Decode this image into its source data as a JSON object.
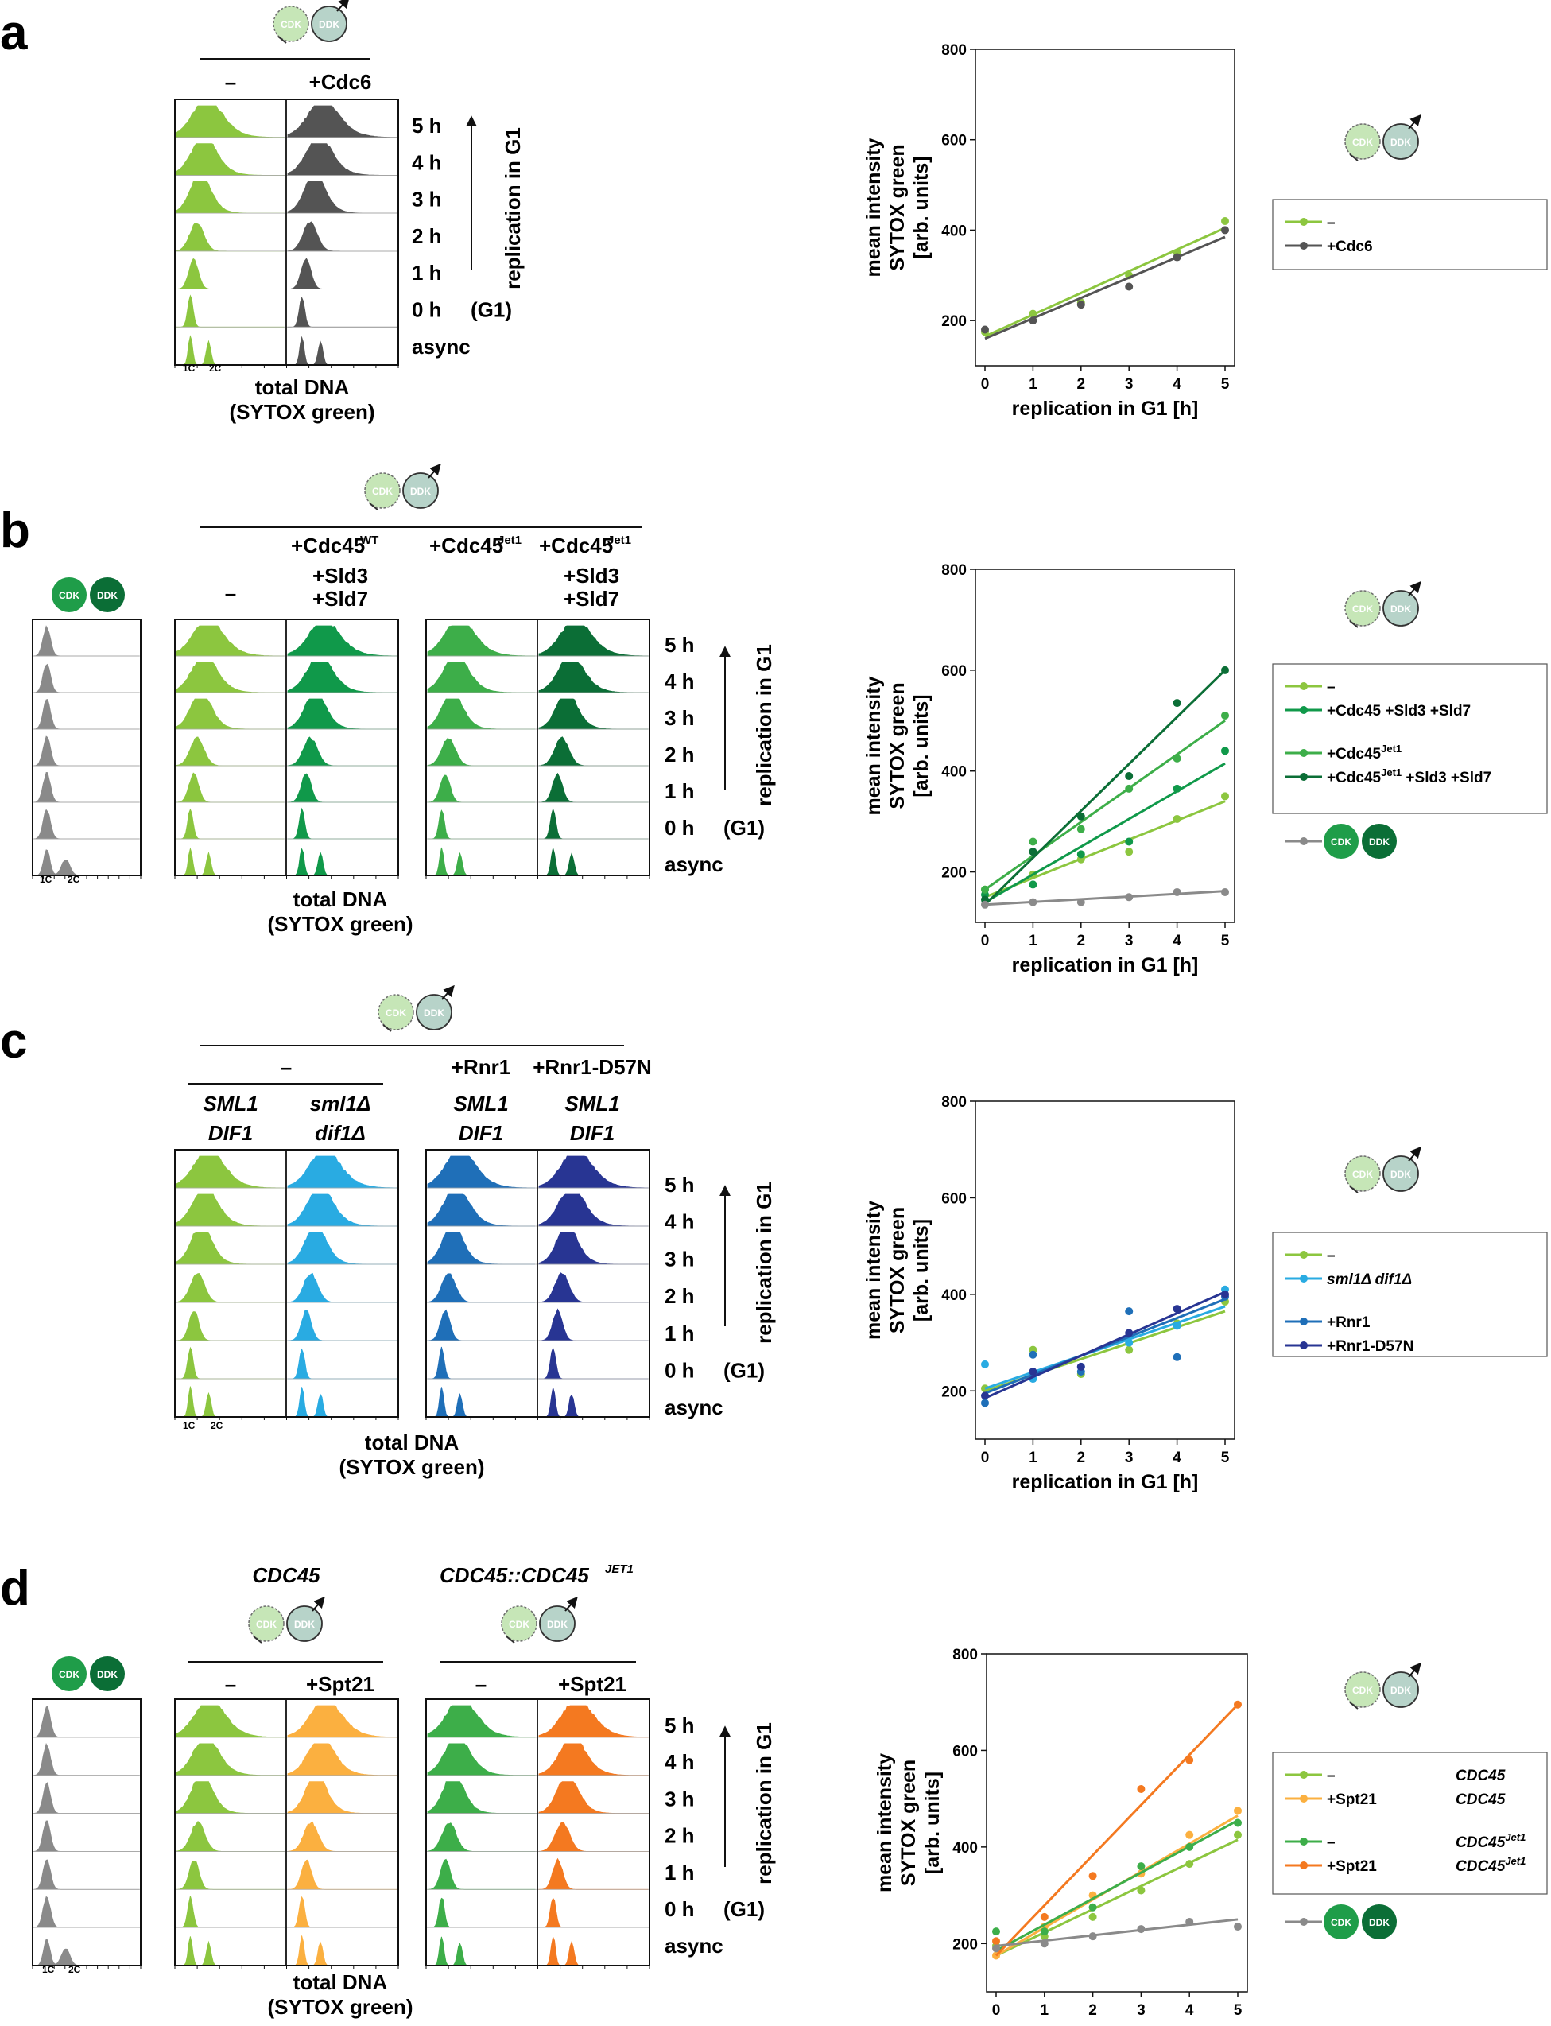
{
  "panel_labels": [
    "a",
    "b",
    "c",
    "d"
  ],
  "common": {
    "cdk_label": "CDK",
    "ddk_label": "DDK",
    "time_labels": [
      "5 h",
      "4 h",
      "3 h",
      "2 h",
      "1 h",
      "0 h",
      "async"
    ],
    "g1_tag": "(G1)",
    "arrow_label": "replication in G1",
    "xaxis_line1": "total DNA",
    "xaxis_line2": "(SYTOX green)",
    "tick_1c": "1C",
    "tick_2c": "2C",
    "dash": "–"
  },
  "panel_a": {
    "columns": [
      "–",
      "+Cdc6"
    ],
    "colors": {
      "green": "#8cc63f",
      "dark": "#545454"
    }
  },
  "panel_b": {
    "col_minus": "–",
    "col2_line1": "+Cdc45",
    "col2_sup": "WT",
    "col2_line2": "+Sld3",
    "col2_line3": "+Sld7",
    "col3_line1": "+Cdc45",
    "col3_sup": "Jet1",
    "col4_line1": "+Cdc45",
    "col4_sup": "Jet1",
    "col4_line2": "+Sld3",
    "col4_line3": "+Sld7",
    "colors": {
      "grey": "#8a8a8a",
      "green": "#8cc63f",
      "mid": "#10994a",
      "bright": "#3dae49",
      "dark": "#0b6e36"
    }
  },
  "panel_c": {
    "col_minus": "–",
    "col_rnr1": "+Rnr1",
    "col_rnr1d": "+Rnr1-D57N",
    "geno": [
      [
        "SML1",
        "DIF1"
      ],
      [
        "sml1Δ",
        "dif1Δ"
      ],
      [
        "SML1",
        "DIF1"
      ],
      [
        "SML1",
        "DIF1"
      ]
    ],
    "colors": {
      "green": "#8cc63f",
      "cyan": "#29abe2",
      "blue": "#1f6fb8",
      "navy": "#283593"
    }
  },
  "panel_d": {
    "title_left": "CDC45",
    "title_right": "CDC45::CDC45",
    "title_right_sup": "JET1",
    "columns_left": [
      "–",
      "+Spt21"
    ],
    "columns_right": [
      "–",
      "+Spt21"
    ],
    "colors": {
      "grey": "#8a8a8a",
      "green": "#8cc63f",
      "lightorange": "#fbb040",
      "bright": "#3dae49",
      "orange": "#f47920"
    }
  },
  "chart_data": [
    {
      "type": "scatter",
      "title": "",
      "xlabel": "replication in G1 [h]",
      "ylabel": [
        "mean intensity",
        "SYTOX green",
        "[arb. units]"
      ],
      "xlim": [
        0,
        5
      ],
      "ylim": [
        100,
        800
      ],
      "xticks": [
        0,
        1,
        2,
        3,
        4,
        5
      ],
      "yticks": [
        200,
        400,
        600,
        800
      ],
      "legend": [
        {
          "label": "–",
          "sup": "",
          "geno": "",
          "genosup": ""
        },
        {
          "label": "+Cdc6",
          "sup": "",
          "geno": "",
          "genosup": ""
        }
      ],
      "series": [
        {
          "name": "–",
          "color": "#8cc63f",
          "x": [
            0,
            1,
            2,
            3,
            4,
            5
          ],
          "y": [
            175,
            215,
            240,
            300,
            350,
            420
          ],
          "fit": [
            165,
            405
          ]
        },
        {
          "name": "+Cdc6",
          "color": "#545454",
          "x": [
            0,
            1,
            2,
            3,
            4,
            5
          ],
          "y": [
            180,
            200,
            235,
            275,
            340,
            400
          ],
          "fit": [
            160,
            385
          ]
        }
      ]
    },
    {
      "type": "scatter",
      "title": "",
      "xlabel": "replication in G1 [h]",
      "ylabel": [
        "mean intensity",
        "SYTOX green",
        "[arb. units]"
      ],
      "xlim": [
        0,
        5
      ],
      "ylim": [
        100,
        800
      ],
      "xticks": [
        0,
        1,
        2,
        3,
        4,
        5
      ],
      "yticks": [
        200,
        400,
        600,
        800
      ],
      "legend": [
        {
          "label": "–",
          "sup": "",
          "geno": "",
          "genosup": ""
        },
        {
          "label": "+Cdc45 +Sld3 +Sld7",
          "sup": "",
          "geno": "",
          "genosup": ""
        },
        {
          "label": "+Cdc45",
          "sup": "Jet1",
          "geno": "",
          "genosup": ""
        },
        {
          "label": "+Cdc45",
          "sup": "Jet1",
          "tail": " +Sld3 +Sld7",
          "geno": "",
          "genosup": ""
        },
        {
          "label": "",
          "sup": "",
          "geno": "",
          "genosup": "",
          "badge": true
        }
      ],
      "series": [
        {
          "name": "–",
          "color": "#8cc63f",
          "x": [
            0,
            1,
            2,
            3,
            4,
            5
          ],
          "y": [
            165,
            195,
            225,
            240,
            305,
            350
          ],
          "fit": [
            150,
            340
          ]
        },
        {
          "name": "+Cdc45 +Sld3 +Sld7",
          "color": "#10994a",
          "x": [
            0,
            1,
            2,
            3,
            4,
            5
          ],
          "y": [
            155,
            175,
            235,
            260,
            365,
            440
          ],
          "fit": [
            140,
            415
          ]
        },
        {
          "name": "+Cdc45Jet1",
          "color": "#3dae49",
          "x": [
            0,
            1,
            2,
            3,
            4,
            5
          ],
          "y": [
            165,
            260,
            285,
            365,
            425,
            510
          ],
          "fit": [
            165,
            500
          ]
        },
        {
          "name": "+Cdc45Jet1 +Sld3 +Sld7",
          "color": "#0b6e36",
          "x": [
            0,
            1,
            2,
            3,
            4,
            5
          ],
          "y": [
            145,
            240,
            310,
            390,
            535,
            600
          ],
          "fit": [
            135,
            600
          ]
        },
        {
          "name": "CDK DDK",
          "color": "#8a8a8a",
          "x": [
            0,
            1,
            2,
            3,
            4,
            5
          ],
          "y": [
            135,
            140,
            140,
            150,
            160,
            160
          ],
          "fit": [
            135,
            162
          ]
        }
      ]
    },
    {
      "type": "scatter",
      "title": "",
      "xlabel": "replication in G1 [h]",
      "ylabel": [
        "mean intensity",
        "SYTOX green",
        "[arb. units]"
      ],
      "xlim": [
        0,
        5
      ],
      "ylim": [
        100,
        800
      ],
      "xticks": [
        0,
        1,
        2,
        3,
        4,
        5
      ],
      "yticks": [
        200,
        400,
        600,
        800
      ],
      "legend": [
        {
          "label": "–",
          "sup": "",
          "geno": "",
          "genosup": ""
        },
        {
          "label": "sml1Δ  dif1Δ",
          "sup": "",
          "geno": "",
          "genosup": "",
          "italic": true
        },
        {
          "label": "+Rnr1",
          "sup": "",
          "geno": "",
          "genosup": ""
        },
        {
          "label": "+Rnr1-D57N",
          "sup": "",
          "geno": "",
          "genosup": ""
        }
      ],
      "series": [
        {
          "name": "–",
          "color": "#8cc63f",
          "x": [
            0,
            1,
            2,
            3,
            4,
            5
          ],
          "y": [
            205,
            285,
            235,
            285,
            340,
            385
          ],
          "fit": [
            200,
            365
          ]
        },
        {
          "name": "sml1Δ dif1Δ",
          "color": "#29abe2",
          "x": [
            0,
            1,
            2,
            3,
            4,
            5
          ],
          "y": [
            255,
            225,
            250,
            300,
            335,
            410
          ],
          "fit": [
            205,
            375
          ]
        },
        {
          "name": "+Rnr1",
          "color": "#1f6fb8",
          "x": [
            0,
            1,
            2,
            3,
            4,
            5
          ],
          "y": [
            175,
            275,
            240,
            365,
            270,
            395
          ],
          "fit": [
            195,
            390
          ]
        },
        {
          "name": "+Rnr1-D57N",
          "color": "#283593",
          "x": [
            0,
            1,
            2,
            3,
            4,
            5
          ],
          "y": [
            190,
            240,
            250,
            320,
            370,
            400
          ],
          "fit": [
            185,
            405
          ]
        }
      ]
    },
    {
      "type": "scatter",
      "title": "",
      "xlabel": "replication in G1 [h]",
      "ylabel": [
        "mean intensity",
        "SYTOX green",
        "[arb. units]"
      ],
      "xlim": [
        0,
        5
      ],
      "ylim": [
        100,
        800
      ],
      "xticks": [
        0,
        1,
        2,
        3,
        4,
        5
      ],
      "yticks": [
        200,
        400,
        600,
        800
      ],
      "legend": [
        {
          "label": "–",
          "sup": "",
          "geno": "CDC45",
          "genosup": ""
        },
        {
          "label": "+Spt21",
          "sup": "",
          "geno": "CDC45",
          "genosup": ""
        },
        {
          "label": "–",
          "sup": "",
          "geno": "CDC45",
          "genosup": "Jet1"
        },
        {
          "label": "+Spt21",
          "sup": "",
          "geno": "CDC45",
          "genosup": "Jet1"
        },
        {
          "label": "",
          "sup": "",
          "geno": "",
          "genosup": "",
          "badge": true
        }
      ],
      "series": [
        {
          "name": "– CDC45",
          "color": "#8cc63f",
          "x": [
            0,
            1,
            2,
            3,
            4,
            5
          ],
          "y": [
            195,
            215,
            255,
            310,
            365,
            425
          ],
          "fit": [
            175,
            415
          ]
        },
        {
          "name": "+Spt21 CDC45",
          "color": "#fbb040",
          "x": [
            0,
            1,
            2,
            3,
            4,
            5
          ],
          "y": [
            175,
            235,
            300,
            345,
            425,
            475
          ],
          "fit": [
            175,
            465
          ]
        },
        {
          "name": "– CDC45Jet1",
          "color": "#3dae49",
          "x": [
            0,
            1,
            2,
            3,
            4,
            5
          ],
          "y": [
            225,
            225,
            275,
            360,
            400,
            450
          ],
          "fit": [
            185,
            455
          ]
        },
        {
          "name": "+Spt21 CDC45Jet1",
          "color": "#f47920",
          "x": [
            0,
            1,
            2,
            3,
            4,
            5
          ],
          "y": [
            205,
            255,
            340,
            520,
            580,
            695
          ],
          "fit": [
            175,
            695
          ]
        },
        {
          "name": "CDK DDK",
          "color": "#8a8a8a",
          "x": [
            0,
            1,
            2,
            3,
            4,
            5
          ],
          "y": [
            190,
            200,
            215,
            230,
            245,
            235
          ],
          "fit": [
            195,
            250
          ]
        }
      ]
    }
  ]
}
